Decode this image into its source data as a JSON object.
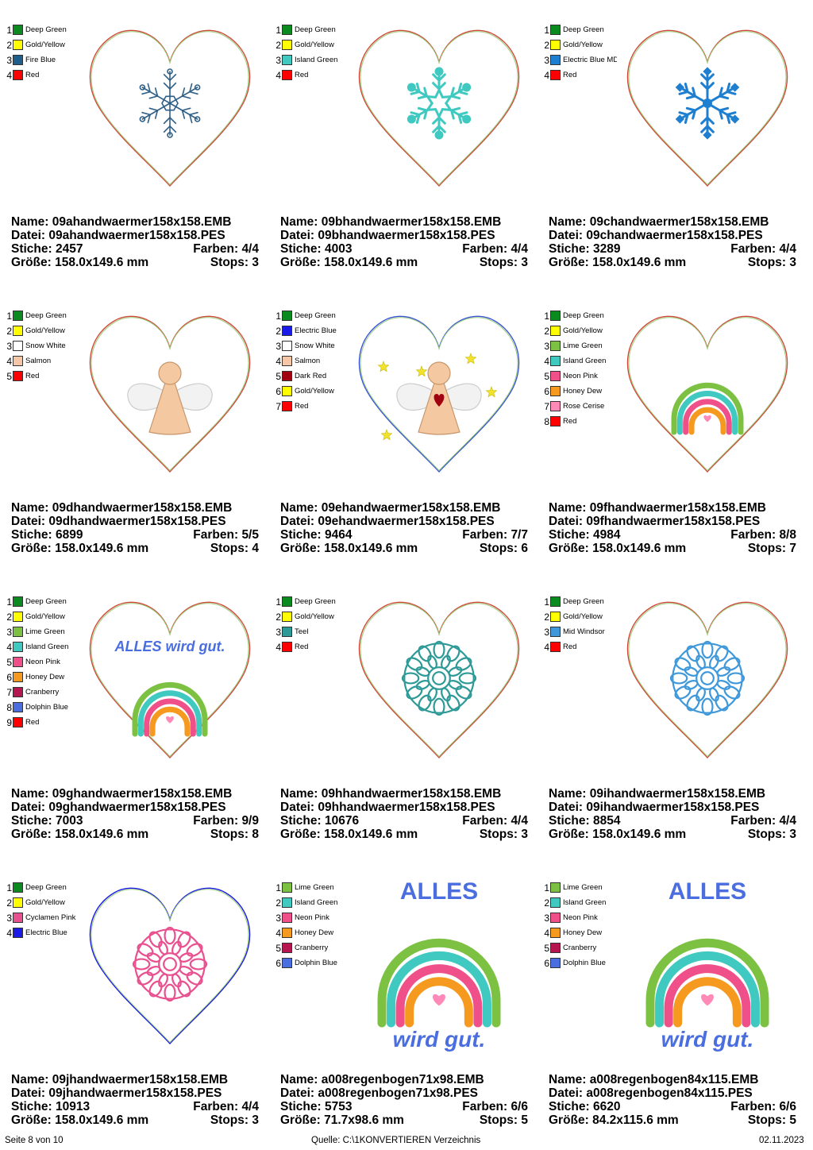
{
  "designs": [
    {
      "art": "snowflake-line",
      "colors": [
        {
          "name": "Deep Green",
          "hex": "#0b8a1f"
        },
        {
          "name": "Gold/Yellow",
          "hex": "#ffff00"
        },
        {
          "name": "Fire Blue",
          "hex": "#1f5f8b"
        },
        {
          "name": "Red",
          "hex": "#ff0000"
        }
      ],
      "name": "09ahandwaermer158x158.EMB",
      "file": "09ahandwaermer158x158.PES",
      "stitches": "2457",
      "colors_count": "4/4",
      "size": "158.0x149.6 mm",
      "stops": "3"
    },
    {
      "art": "snowflake-star",
      "colors": [
        {
          "name": "Deep Green",
          "hex": "#0b8a1f"
        },
        {
          "name": "Gold/Yellow",
          "hex": "#ffff00"
        },
        {
          "name": "Island Green",
          "hex": "#3fc9c0"
        },
        {
          "name": "Red",
          "hex": "#ff0000"
        }
      ],
      "name": "09bhandwaermer158x158.EMB",
      "file": "09bhandwaermer158x158.PES",
      "stitches": "4003",
      "colors_count": "4/4",
      "size": "158.0x149.6 mm",
      "stops": "3"
    },
    {
      "art": "snowflake-dots",
      "colors": [
        {
          "name": "Deep Green",
          "hex": "#0b8a1f"
        },
        {
          "name": "Gold/Yellow",
          "hex": "#ffff00"
        },
        {
          "name": "Electric Blue MD",
          "hex": "#1e7fd0"
        },
        {
          "name": "Red",
          "hex": "#ff0000"
        }
      ],
      "name": "09chandwaermer158x158.EMB",
      "file": "09chandwaermer158x158.PES",
      "stitches": "3289",
      "colors_count": "4/4",
      "size": "158.0x149.6 mm",
      "stops": "3"
    },
    {
      "art": "angel",
      "colors": [
        {
          "name": "Deep Green",
          "hex": "#0b8a1f"
        },
        {
          "name": "Gold/Yellow",
          "hex": "#ffff00"
        },
        {
          "name": "Snow White",
          "hex": "#ffffff"
        },
        {
          "name": "Salmon",
          "hex": "#f6c7a6"
        },
        {
          "name": "Red",
          "hex": "#ff0000"
        }
      ],
      "name": "09dhandwaermer158x158.EMB",
      "file": "09dhandwaermer158x158.PES",
      "stitches": "6899",
      "colors_count": "5/5",
      "size": "158.0x149.6 mm",
      "stops": "4"
    },
    {
      "art": "angel-stars",
      "colors": [
        {
          "name": "Deep Green",
          "hex": "#0b8a1f"
        },
        {
          "name": "Electric Blue",
          "hex": "#1a1ae6"
        },
        {
          "name": "Snow White",
          "hex": "#ffffff"
        },
        {
          "name": "Salmon",
          "hex": "#f6c7a6"
        },
        {
          "name": "Dark Red",
          "hex": "#a00010"
        },
        {
          "name": "Gold/Yellow",
          "hex": "#ffff00"
        },
        {
          "name": "Red",
          "hex": "#ff0000"
        }
      ],
      "name": "09ehandwaermer158x158.EMB",
      "file": "09ehandwaermer158x158.PES",
      "stitches": "9464",
      "colors_count": "7/7",
      "size": "158.0x149.6 mm",
      "stops": "6"
    },
    {
      "art": "rainbow-small",
      "colors": [
        {
          "name": "Deep Green",
          "hex": "#0b8a1f"
        },
        {
          "name": "Gold/Yellow",
          "hex": "#ffff00"
        },
        {
          "name": "Lime Green",
          "hex": "#7cc142"
        },
        {
          "name": "Island Green",
          "hex": "#3fc9c0"
        },
        {
          "name": "Neon Pink",
          "hex": "#f0508a"
        },
        {
          "name": "Honey Dew",
          "hex": "#f59a1f"
        },
        {
          "name": "Rose Cerise",
          "hex": "#ff8ab8"
        },
        {
          "name": "Red",
          "hex": "#ff0000"
        }
      ],
      "name": "09fhandwaermer158x158.EMB",
      "file": "09fhandwaermer158x158.PES",
      "stitches": "4984",
      "colors_count": "8/8",
      "size": "158.0x149.6 mm",
      "stops": "7"
    },
    {
      "art": "rainbow-text",
      "colors": [
        {
          "name": "Deep Green",
          "hex": "#0b8a1f"
        },
        {
          "name": "Gold/Yellow",
          "hex": "#ffff00"
        },
        {
          "name": "Lime Green",
          "hex": "#7cc142"
        },
        {
          "name": "Island Green",
          "hex": "#3fc9c0"
        },
        {
          "name": "Neon Pink",
          "hex": "#f0508a"
        },
        {
          "name": "Honey Dew",
          "hex": "#f59a1f"
        },
        {
          "name": "Cranberry",
          "hex": "#b5164f"
        },
        {
          "name": "Dolphin Blue",
          "hex": "#4a6ee0"
        },
        {
          "name": "Red",
          "hex": "#ff0000"
        }
      ],
      "name": "09ghandwaermer158x158.EMB",
      "file": "09ghandwaermer158x158.PES",
      "stitches": "7003",
      "colors_count": "9/9",
      "size": "158.0x149.6 mm",
      "stops": "8",
      "text_line1": "ALLES",
      "text_line2": "wird gut."
    },
    {
      "art": "mandala-teal",
      "colors": [
        {
          "name": "Deep Green",
          "hex": "#0b8a1f"
        },
        {
          "name": "Gold/Yellow",
          "hex": "#ffff00"
        },
        {
          "name": "Teel",
          "hex": "#2e9a97"
        },
        {
          "name": "Red",
          "hex": "#ff0000"
        }
      ],
      "name": "09hhandwaermer158x158.EMB",
      "file": "09hhandwaermer158x158.PES",
      "stitches": "10676",
      "colors_count": "4/4",
      "size": "158.0x149.6 mm",
      "stops": "3"
    },
    {
      "art": "mandala-blue",
      "colors": [
        {
          "name": "Deep Green",
          "hex": "#0b8a1f"
        },
        {
          "name": "Gold/Yellow",
          "hex": "#ffff00"
        },
        {
          "name": "Mid Windsor",
          "hex": "#3f98da"
        },
        {
          "name": "Red",
          "hex": "#ff0000"
        }
      ],
      "name": "09ihandwaermer158x158.EMB",
      "file": "09ihandwaermer158x158.PES",
      "stitches": "8854",
      "colors_count": "4/4",
      "size": "158.0x149.6 mm",
      "stops": "3"
    },
    {
      "art": "mandala-pink",
      "colors": [
        {
          "name": "Deep Green",
          "hex": "#0b8a1f"
        },
        {
          "name": "Gold/Yellow",
          "hex": "#ffff00"
        },
        {
          "name": "Cyclamen Pink",
          "hex": "#e8508f"
        },
        {
          "name": "Electric Blue",
          "hex": "#1a1ae6"
        }
      ],
      "name": "09jhandwaermer158x158.EMB",
      "file": "09jhandwaermer158x158.PES",
      "stitches": "10913",
      "colors_count": "4/4",
      "size": "158.0x149.6 mm",
      "stops": "3"
    },
    {
      "art": "rainbow-big",
      "colors": [
        {
          "name": "Lime Green",
          "hex": "#7cc142"
        },
        {
          "name": "Island Green",
          "hex": "#3fc9c0"
        },
        {
          "name": "Neon Pink",
          "hex": "#f0508a"
        },
        {
          "name": "Honey Dew",
          "hex": "#f59a1f"
        },
        {
          "name": "Cranberry",
          "hex": "#b5164f"
        },
        {
          "name": "Dolphin Blue",
          "hex": "#4a6ee0"
        }
      ],
      "name": "a008regenbogen71x98.EMB",
      "file": "a008regenbogen71x98.PES",
      "stitches": "5753",
      "colors_count": "6/6",
      "size": "71.7x98.6 mm",
      "stops": "5",
      "text_line1": "ALLES",
      "text_line2": "wird gut."
    },
    {
      "art": "rainbow-big",
      "colors": [
        {
          "name": "Lime Green",
          "hex": "#7cc142"
        },
        {
          "name": "Island Green",
          "hex": "#3fc9c0"
        },
        {
          "name": "Neon Pink",
          "hex": "#f0508a"
        },
        {
          "name": "Honey Dew",
          "hex": "#f59a1f"
        },
        {
          "name": "Cranberry",
          "hex": "#b5164f"
        },
        {
          "name": "Dolphin Blue",
          "hex": "#4a6ee0"
        }
      ],
      "name": "a008regenbogen84x115.EMB",
      "file": "a008regenbogen84x115.PES",
      "stitches": "6620",
      "colors_count": "6/6",
      "size": "84.2x115.6 mm",
      "stops": "5",
      "text_line1": "ALLES",
      "text_line2": "wird gut."
    }
  ],
  "labels": {
    "name": "Name:",
    "file": "Datei:",
    "stitches": "Stiche:",
    "colors": "Farben:",
    "size": "Größe:",
    "stops": "Stops:"
  },
  "footer": {
    "page": "Seite 8 von 10",
    "source": "Quelle: C:\\1KONVERTIEREN Verzeichnis",
    "date": "02.11.2023"
  }
}
